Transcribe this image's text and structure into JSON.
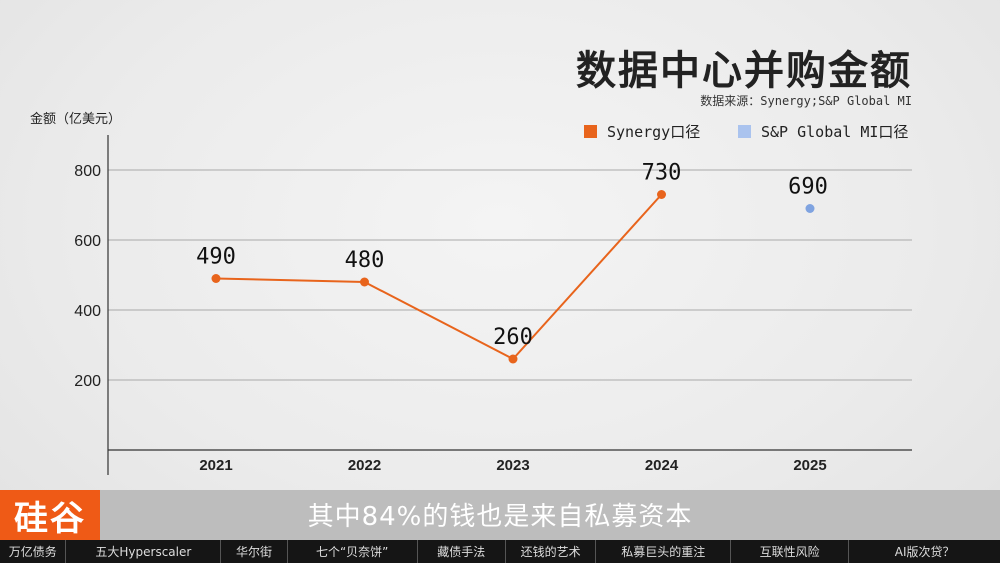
{
  "title": "数据中心并购金额",
  "source": "数据来源：Synergy;S&P Global MI",
  "y_unit": "金额（亿美元）",
  "legend": [
    {
      "label": "Synergy口径",
      "color": "#e8641c"
    },
    {
      "label": "S&P Global MI口径",
      "color": "#aac3ee"
    }
  ],
  "chart_data": {
    "type": "line",
    "categories": [
      "2021",
      "2022",
      "2023",
      "2024",
      "2025"
    ],
    "series": [
      {
        "name": "Synergy口径",
        "color": "#e8641c",
        "values": [
          490,
          480,
          260,
          730,
          null
        ],
        "data_labels": [
          "490",
          "480",
          "260",
          "730",
          ""
        ]
      },
      {
        "name": "S&P Global MI口径",
        "color": "#7fa3e0",
        "values": [
          null,
          null,
          null,
          null,
          690
        ],
        "data_labels": [
          "",
          "",
          "",
          "",
          "690"
        ]
      }
    ],
    "ylim": [
      0,
      900
    ],
    "yticks": [
      200,
      400,
      600,
      800
    ],
    "grid": true
  },
  "subtitle": "其中84%的钱也是来自私募资本",
  "logo": "硅谷",
  "nav": [
    {
      "label": "万亿债务",
      "active": false
    },
    {
      "label": "五大Hyperscaler",
      "active": false
    },
    {
      "label": "华尔街",
      "active": false
    },
    {
      "label": "七个“贝奈饼”",
      "active": false
    },
    {
      "label": "藏债手法",
      "active": false
    },
    {
      "label": "还钱的艺术",
      "active": false
    },
    {
      "label": "私募巨头的重注",
      "active": false
    },
    {
      "label": "互联性风险",
      "active": false
    },
    {
      "label": "AI版次贷？",
      "active": false
    }
  ]
}
